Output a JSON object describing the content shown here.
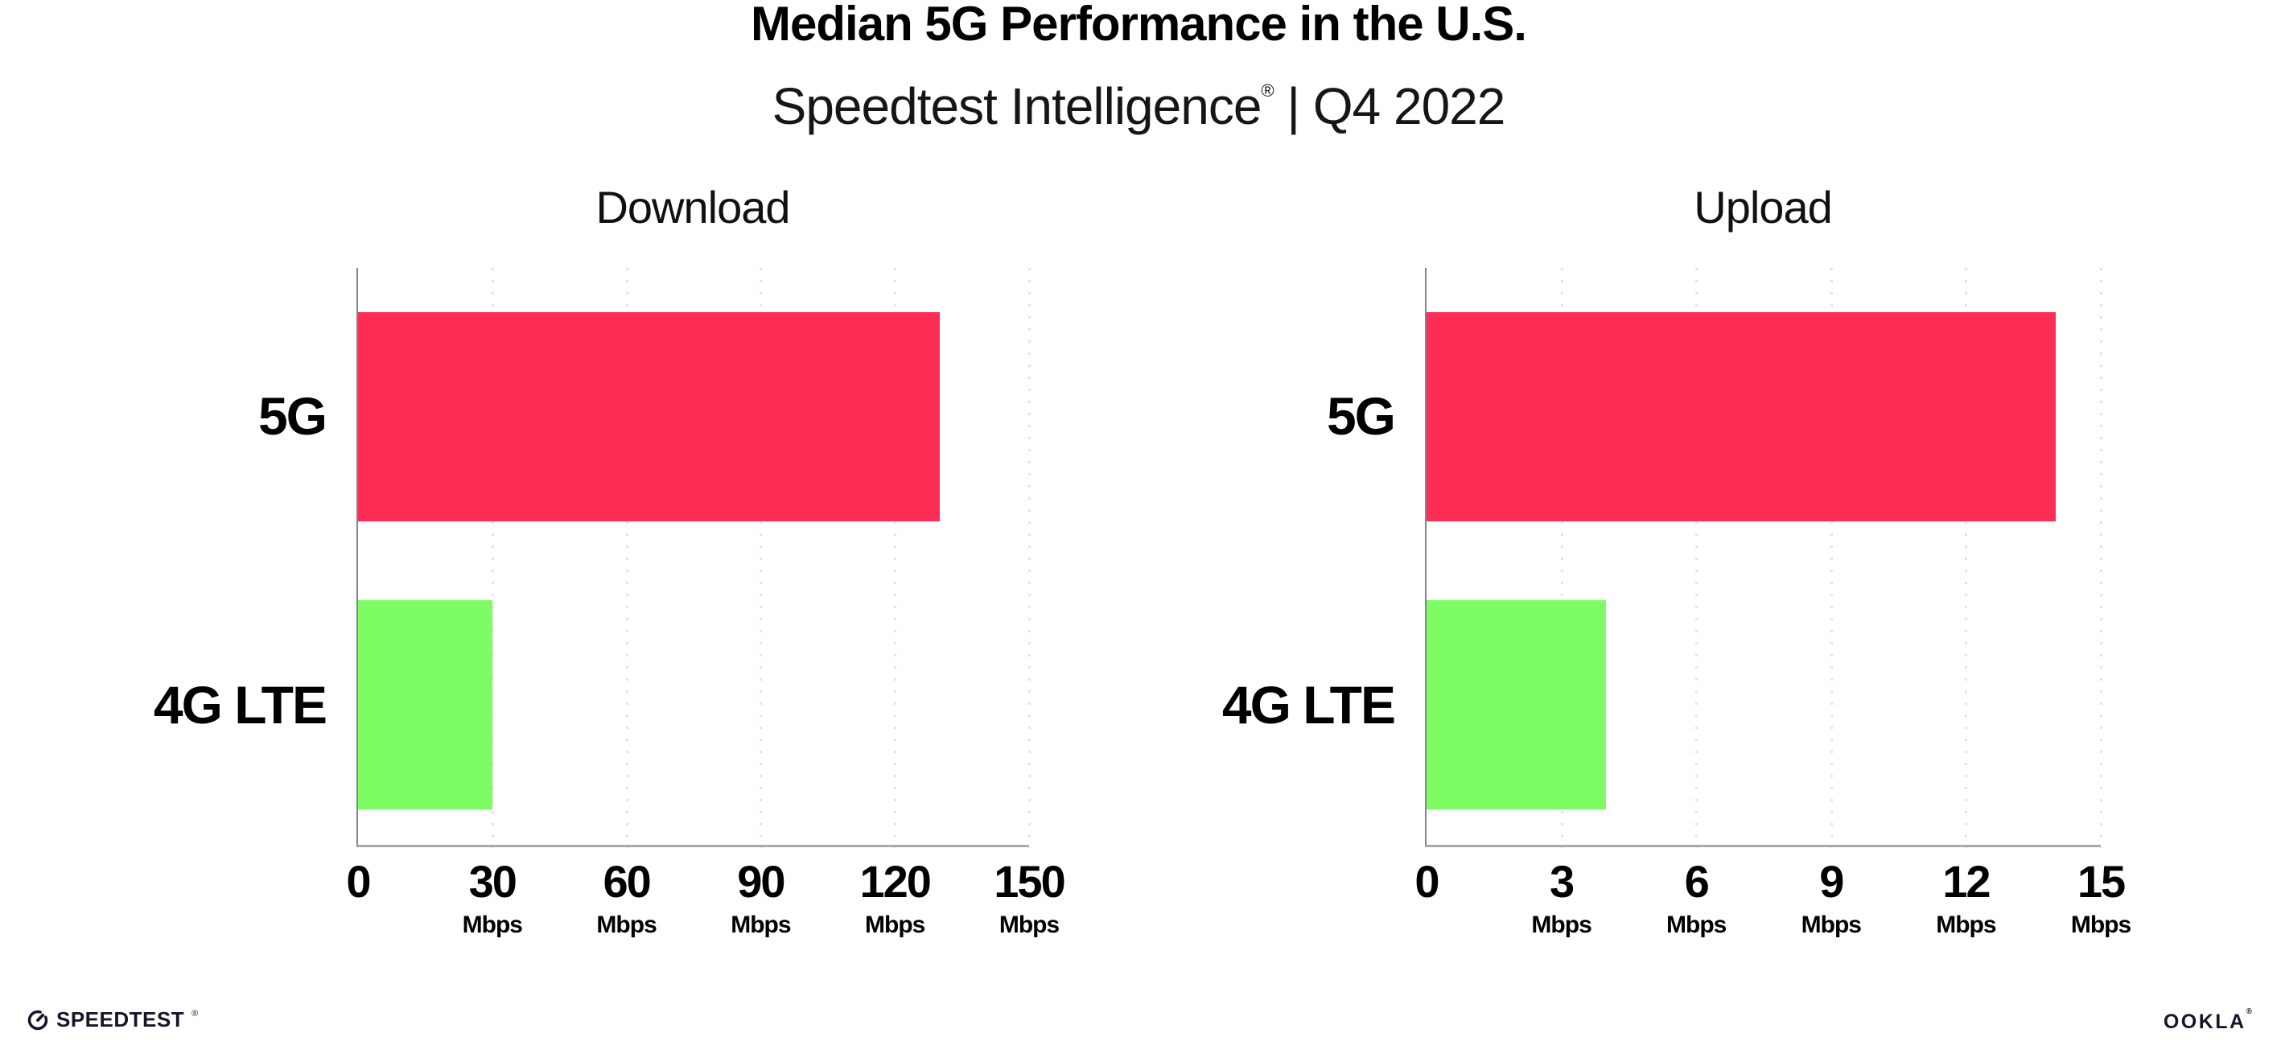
{
  "header": {
    "title": "Median 5G Performance in the U.S.",
    "subtitle_brand": "Speedtest Intelligence",
    "subtitle_reg_mark": "®",
    "subtitle_rest": " | Q4 2022"
  },
  "chart_data": [
    {
      "type": "bar",
      "orientation": "horizontal",
      "title": "Download",
      "categories": [
        "5G",
        "4G LTE"
      ],
      "values": [
        130,
        30
      ],
      "unit": "Mbps",
      "xlabel": "",
      "ylabel": "",
      "xlim": [
        0,
        150
      ],
      "xticks": [
        0,
        30,
        60,
        90,
        120,
        150
      ],
      "bar_colors": [
        "#ff2d55",
        "#7dfc64"
      ],
      "gridlines": "dotted-vertical-at-ticks",
      "legend": "none"
    },
    {
      "type": "bar",
      "orientation": "horizontal",
      "title": "Upload",
      "categories": [
        "5G",
        "4G LTE"
      ],
      "values": [
        14,
        4
      ],
      "unit": "Mbps",
      "xlabel": "",
      "ylabel": "",
      "xlim": [
        0,
        15
      ],
      "xticks": [
        0,
        3,
        6,
        9,
        12,
        15
      ],
      "bar_colors": [
        "#ff2d55",
        "#7dfc64"
      ],
      "gridlines": "dotted-vertical-at-ticks",
      "legend": "none"
    }
  ],
  "footer": {
    "speedtest_icon": "speedometer-gauge-icon",
    "speedtest_wordmark": "SPEEDTEST",
    "speedtest_reg_mark": "®",
    "ookla_wordmark": "OOKLA",
    "ookla_reg_mark": "®"
  },
  "colors": {
    "background": "#ffffff",
    "bar_5g": "#ff2d55",
    "bar_4g_lte": "#7dfc64",
    "axis_line": "#83838b",
    "baseline": "#a8a8af",
    "gridline": "#e2e3ee",
    "text": "#000000",
    "logo": "#15152b"
  }
}
